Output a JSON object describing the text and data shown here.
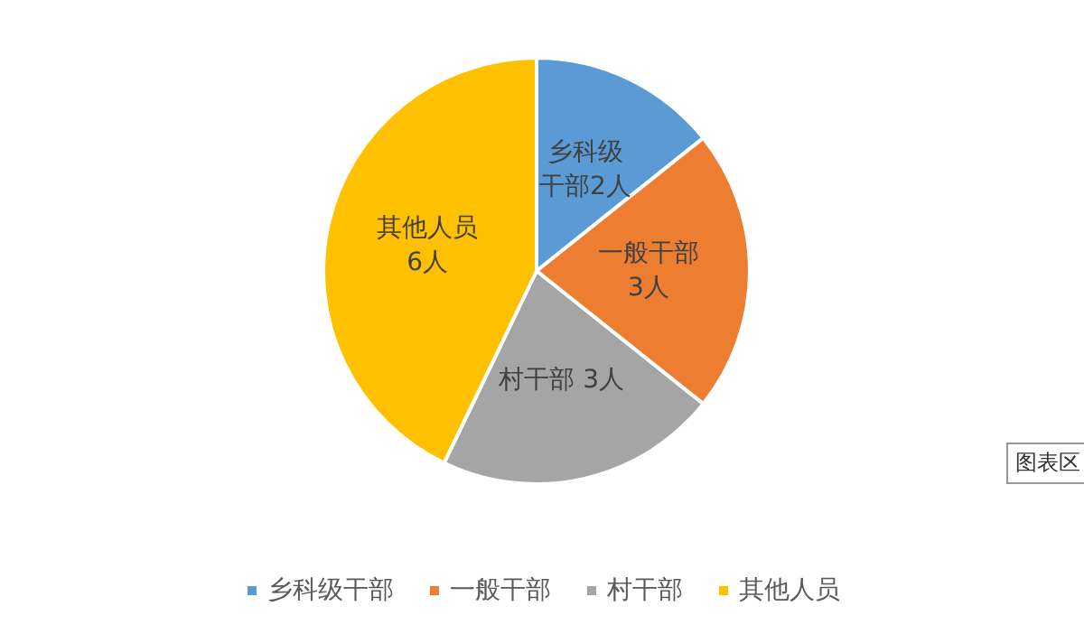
{
  "chart_data": {
    "type": "pie",
    "categories": [
      "乡科级干部",
      "一般干部",
      "村干部",
      "其他人员"
    ],
    "values": [
      2,
      3,
      3,
      6
    ],
    "colors": [
      "#5b9bd5",
      "#ed7d31",
      "#a5a5a5",
      "#ffc000"
    ],
    "value_labels": [
      "乡科级干部2人",
      "一般干部3人",
      "村干部 3人",
      "其他人员6人"
    ],
    "legend": "bottom",
    "annotations": [
      "图表区"
    ]
  }
}
